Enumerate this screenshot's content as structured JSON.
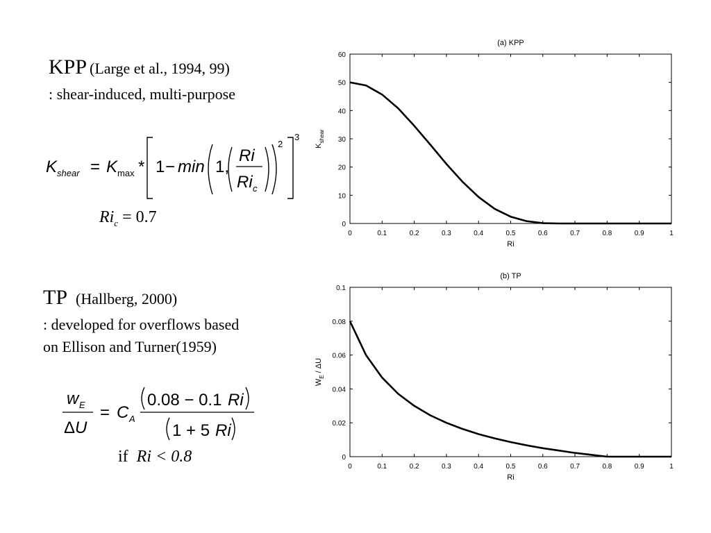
{
  "kpp": {
    "title": "KPP",
    "citation": "(Large et al., 1994, 99)",
    "description": ": shear-induced, multi-purpose",
    "ric_eq": "Ri",
    "ric_sub": "c",
    "ric_value": "= 0.7"
  },
  "tp": {
    "title": "TP",
    "citation": "(Hallberg, 2000)",
    "description_line1": ": developed for overflows based",
    "description_line2": "on Ellison and Turner(1959)",
    "condition_if": "if",
    "condition_expr": "Ri < 0.8"
  },
  "chart_data": [
    {
      "type": "line",
      "title": "(a) KPP",
      "xlabel": "Ri",
      "ylabel_main": "K",
      "ylabel_sub": "shear",
      "xlim": [
        0,
        1
      ],
      "ylim": [
        0,
        60
      ],
      "x_ticks": [
        "0",
        "0.1",
        "0.2",
        "0.3",
        "0.4",
        "0.5",
        "0.6",
        "0.7",
        "0.8",
        "0.9",
        "1"
      ],
      "y_ticks": [
        "0",
        "10",
        "20",
        "30",
        "40",
        "50",
        "60"
      ],
      "grid": false,
      "series": [
        {
          "x": [
            0,
            0.05,
            0.1,
            0.15,
            0.2,
            0.25,
            0.3,
            0.35,
            0.4,
            0.45,
            0.5,
            0.55,
            0.6,
            0.65,
            0.7,
            0.8,
            0.9,
            1.0
          ],
          "y": [
            50.0,
            48.9,
            45.7,
            40.8,
            34.6,
            27.9,
            21.1,
            14.8,
            9.4,
            5.2,
            2.4,
            0.8,
            0.1,
            0,
            0,
            0,
            0,
            0
          ]
        }
      ]
    },
    {
      "type": "line",
      "title": "(b) TP",
      "xlabel": "Ri",
      "ylabel_main": "W",
      "ylabel_sub": "E",
      "ylabel_rest": " / ΔU",
      "xlim": [
        0,
        1
      ],
      "ylim": [
        0,
        0.1
      ],
      "x_ticks": [
        "0",
        "0.1",
        "0.2",
        "0.3",
        "0.4",
        "0.5",
        "0.6",
        "0.7",
        "0.8",
        "0.9",
        "1"
      ],
      "y_ticks": [
        "0",
        "0.02",
        "0.04",
        "0.06",
        "0.08",
        "0.1"
      ],
      "grid": false,
      "series": [
        {
          "x": [
            0,
            0.05,
            0.1,
            0.15,
            0.2,
            0.25,
            0.3,
            0.35,
            0.4,
            0.45,
            0.5,
            0.55,
            0.6,
            0.65,
            0.7,
            0.75,
            0.8,
            0.85,
            0.9,
            1.0
          ],
          "y": [
            0.08,
            0.06,
            0.0467,
            0.0371,
            0.03,
            0.0244,
            0.02,
            0.0164,
            0.0133,
            0.0108,
            0.0086,
            0.0067,
            0.005,
            0.0036,
            0.0022,
            0.0011,
            0,
            0,
            0,
            0
          ]
        }
      ]
    }
  ]
}
